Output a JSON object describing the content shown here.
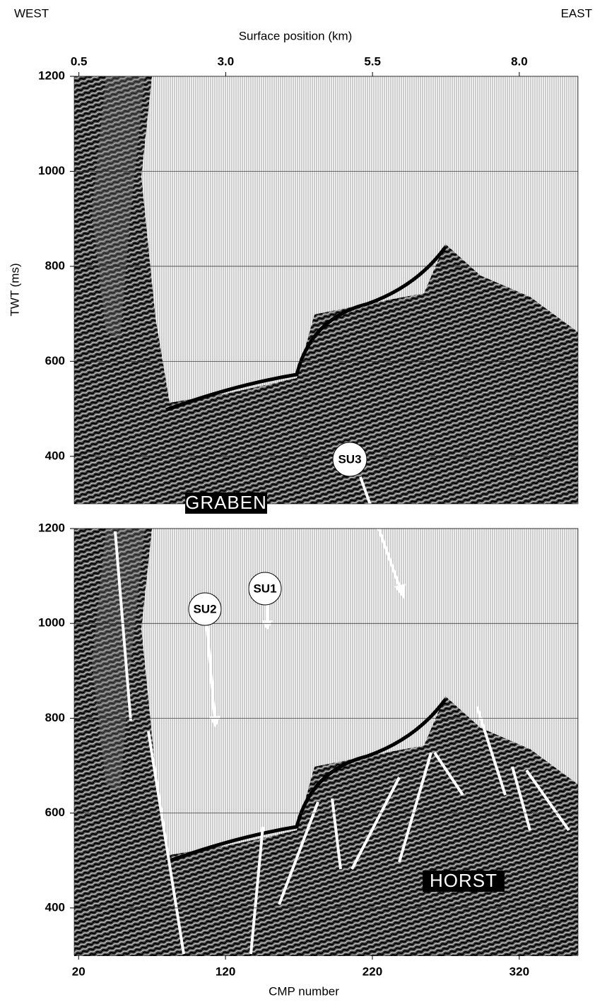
{
  "header": {
    "west": "WEST",
    "east": "EAST"
  },
  "chart_data": [
    {
      "type": "seismic-section",
      "x_label": "Surface position (km)",
      "y_label": "TWT (ms)",
      "xlim": [
        0.42,
        9.0
      ],
      "xticks": [
        0.5,
        {
          "value": 3,
          "label": "3.0"
        },
        5.5,
        {
          "value": 8,
          "label": "8.0"
        }
      ],
      "ylim": [
        300,
        1200
      ],
      "yticks": [
        400,
        600,
        800,
        1000,
        1200
      ]
    },
    {
      "type": "seismic-section",
      "x_label": "CMP number",
      "xlim": [
        17,
        360
      ],
      "xticks": [
        20,
        120,
        220,
        320
      ],
      "ylim": [
        300,
        1200
      ],
      "yticks": [
        400,
        600,
        800,
        1000,
        1200
      ],
      "annotations": [
        "GRABEN",
        "HORST",
        "SU1",
        "SU2",
        "SU3"
      ]
    }
  ]
}
